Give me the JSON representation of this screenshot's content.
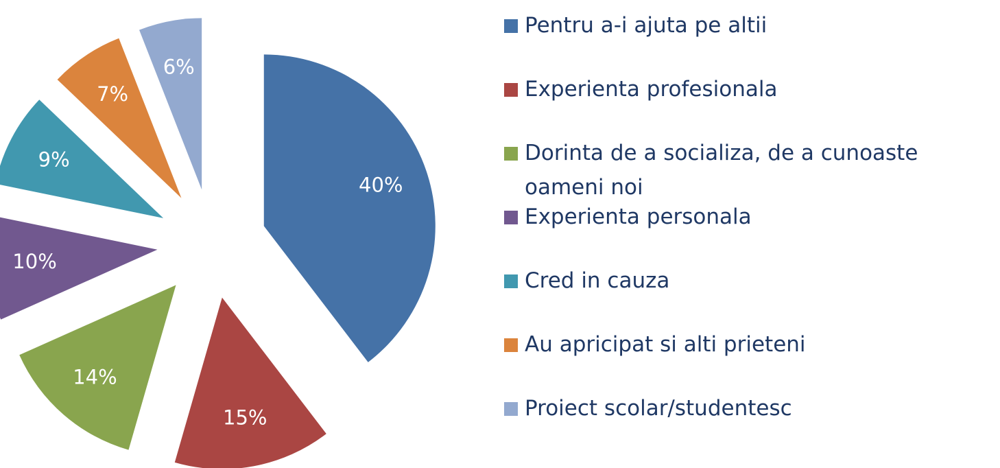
{
  "chart_data": {
    "type": "pie",
    "categories": [
      "Pentru a-i ajuta pe altii",
      "Experienta profesionala",
      "Dorinta de a socializa, de a cunoaste oameni noi",
      "Experienta personala",
      "Cred in cauza",
      "Au apricipat si alti prieteni",
      "Proiect scolar/studentesc"
    ],
    "values": [
      40,
      15,
      14,
      10,
      9,
      7,
      6
    ],
    "value_labels": [
      "40%",
      "15%",
      "14%",
      "10%",
      "9%",
      "7%",
      "6%"
    ],
    "colors": [
      "#4572a7",
      "#aa4643",
      "#89a54e",
      "#71588f",
      "#4198af",
      "#db843d",
      "#93a9cf"
    ],
    "legend": "right"
  }
}
